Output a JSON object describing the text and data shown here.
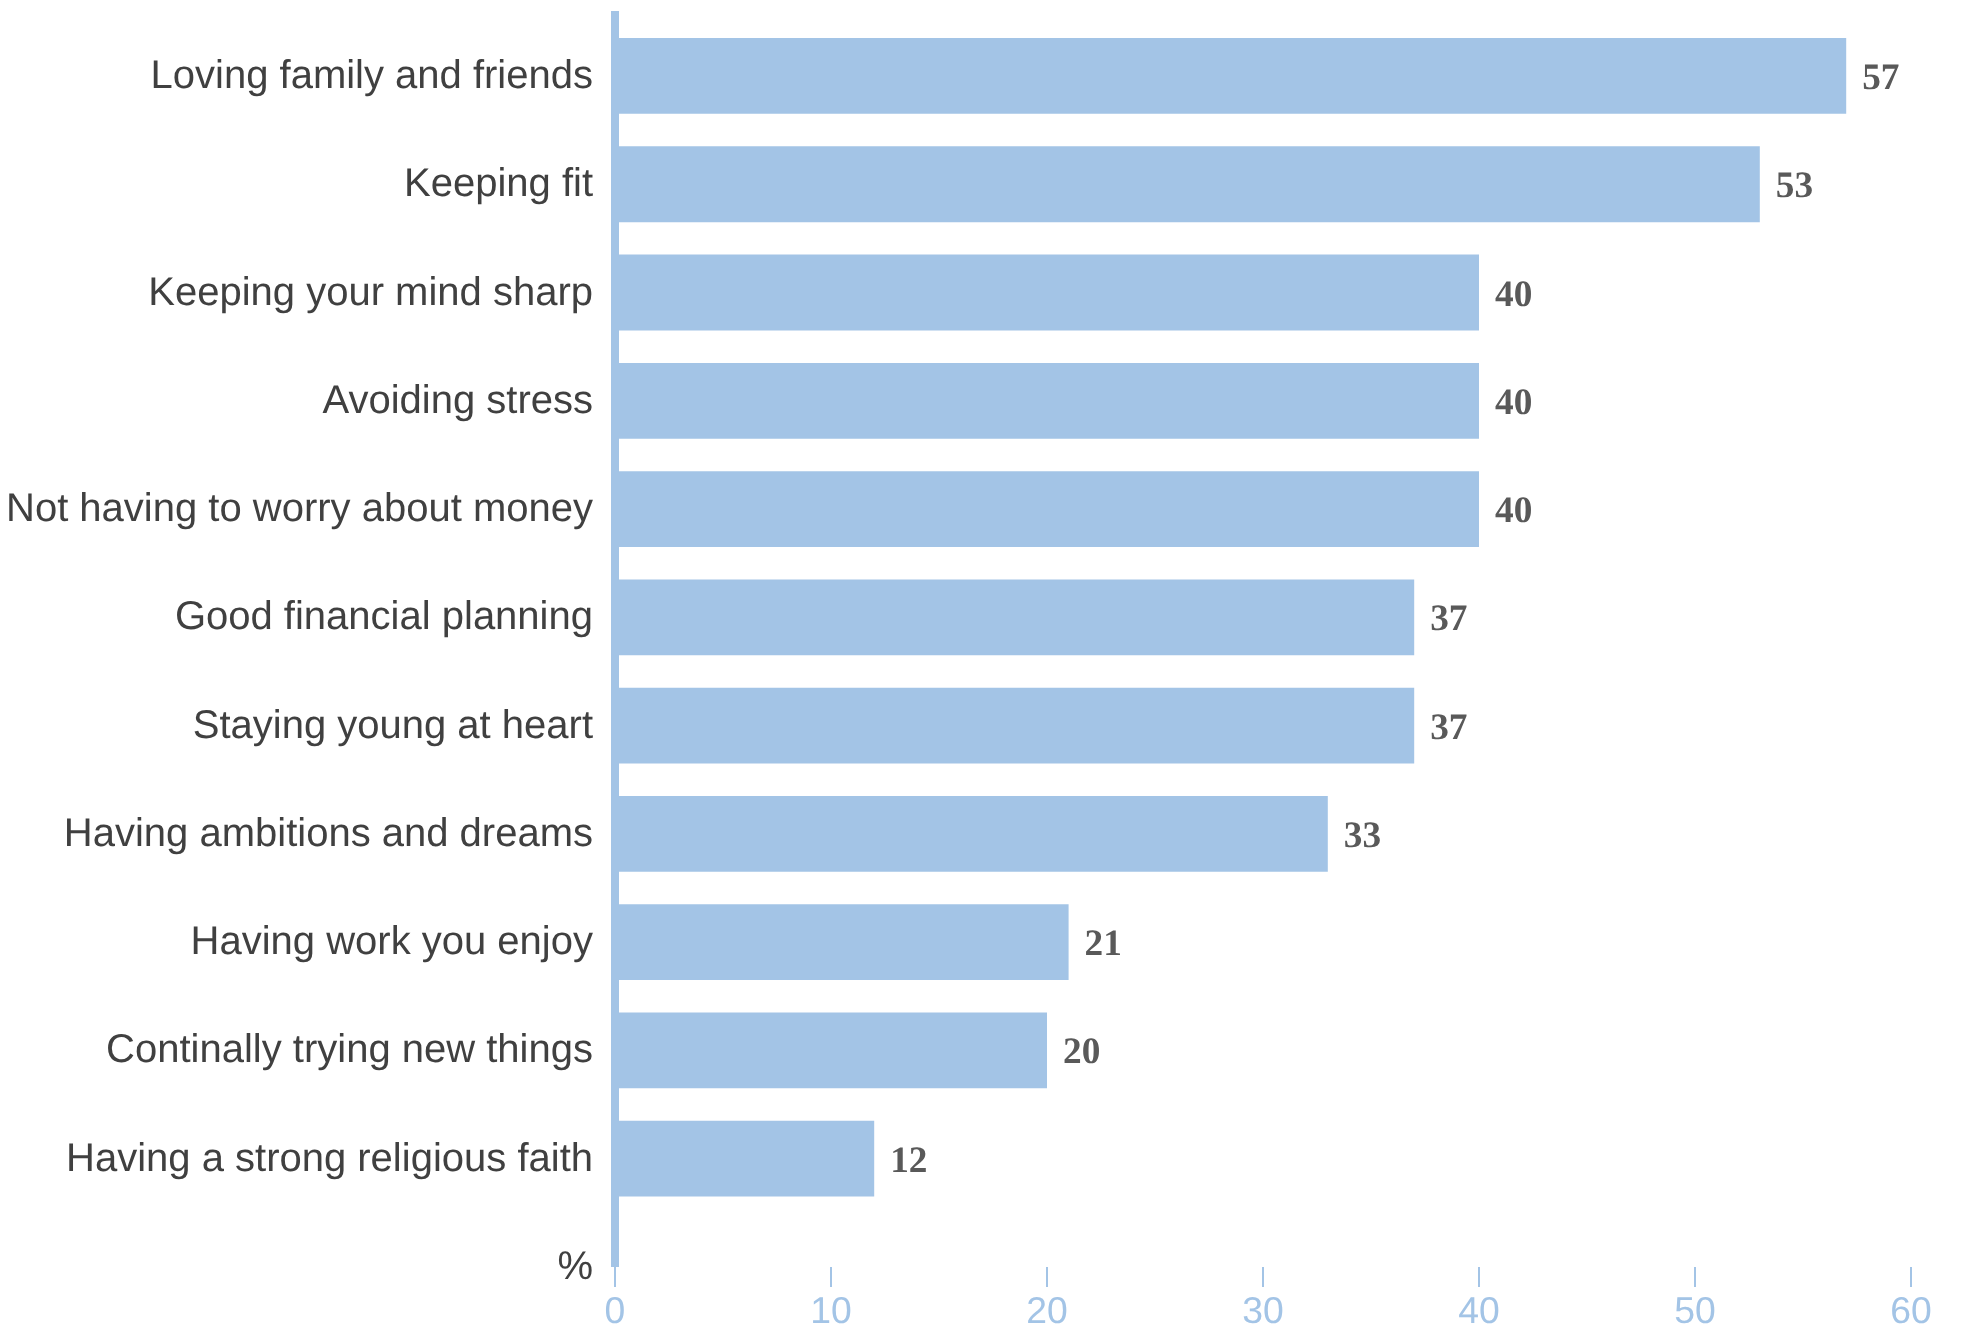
{
  "chart_data": {
    "type": "bar",
    "orientation": "horizontal",
    "xlabel": "%",
    "categories": [
      "Loving family and friends",
      "Keeping fit",
      "Keeping your mind sharp",
      "Avoiding stress",
      "Not having to worry about money",
      "Good financial planning",
      "Staying young at heart",
      "Having ambitions and dreams",
      "Having work you enjoy",
      "Continally trying new things",
      "Having a strong religious faith"
    ],
    "values": [
      57,
      53,
      40,
      40,
      40,
      37,
      37,
      33,
      21,
      20,
      12
    ],
    "color": "#a3c4e6",
    "data_labels": true,
    "xlim": [
      0,
      60
    ],
    "xticks": [
      0,
      10,
      20,
      30,
      40,
      50,
      60
    ],
    "grid": false
  }
}
